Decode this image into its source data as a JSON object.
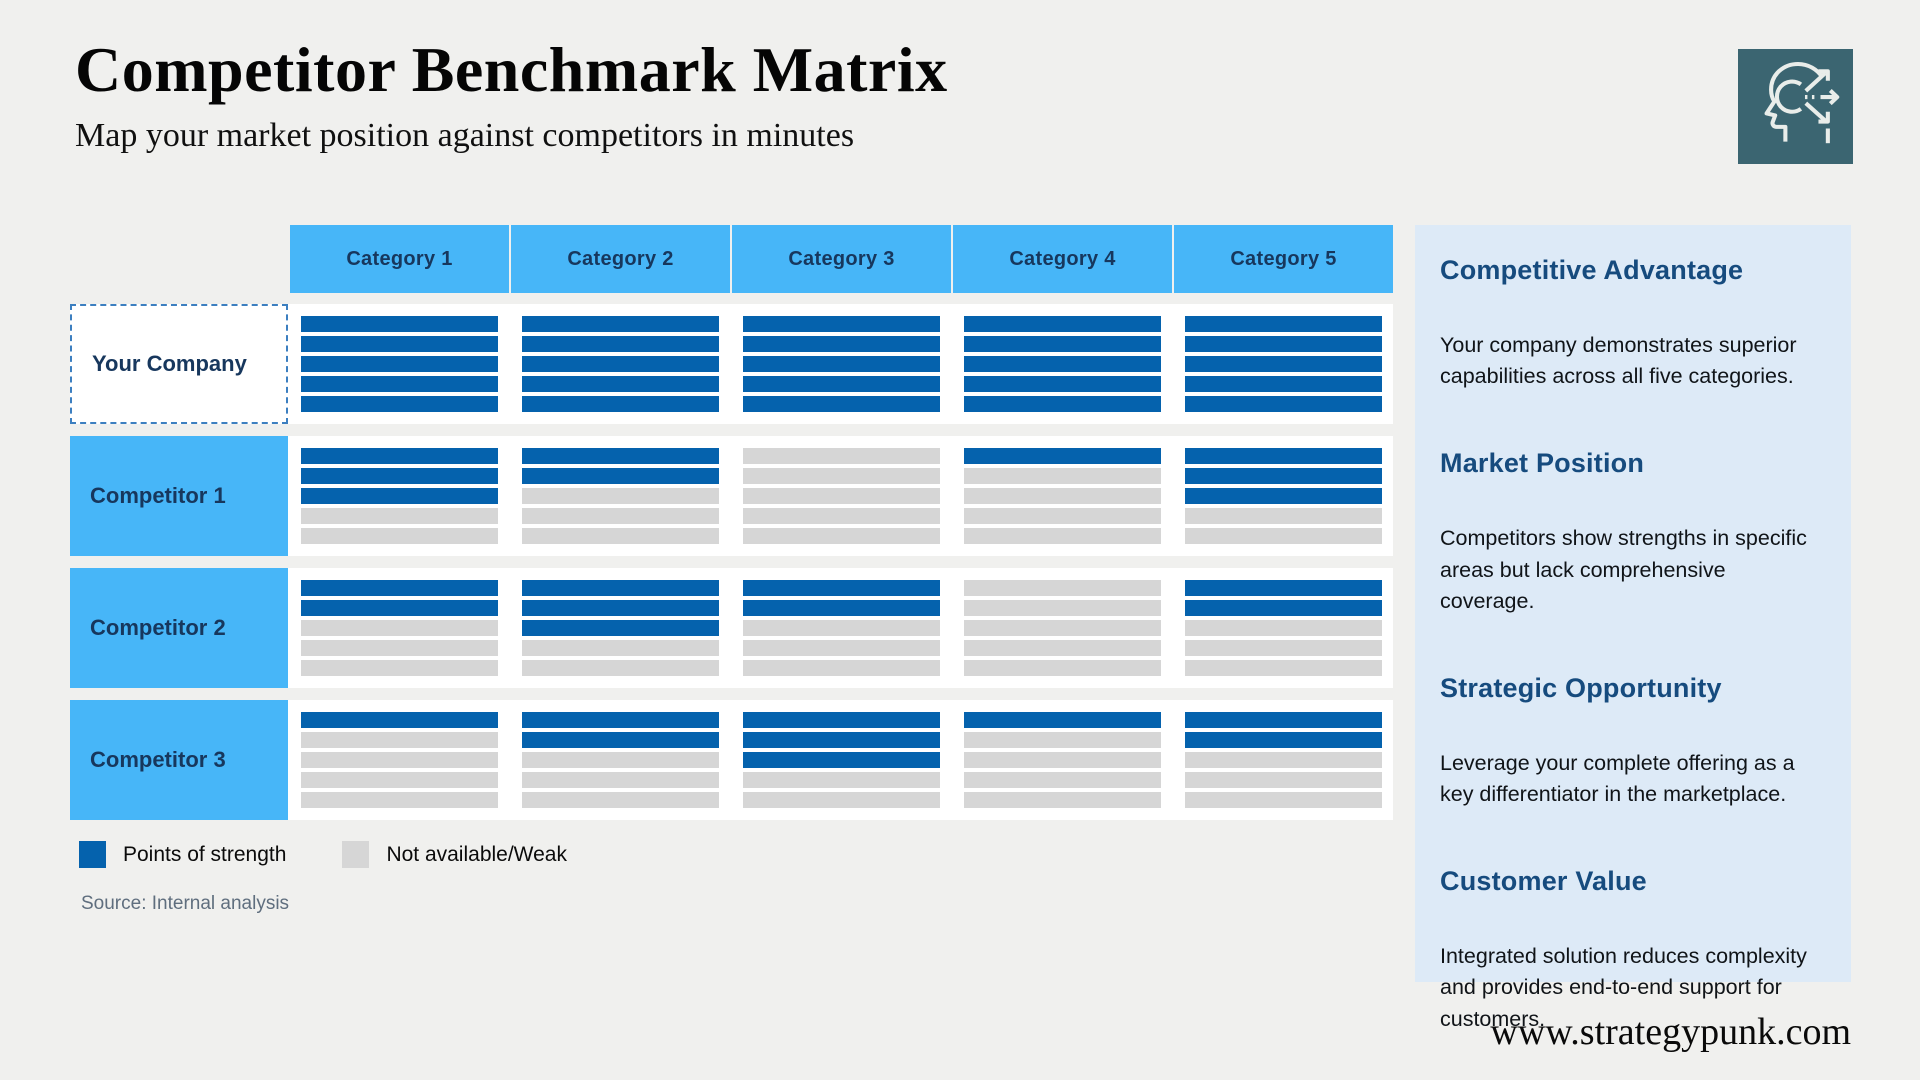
{
  "header": {
    "title": "Competitor Benchmark Matrix",
    "subtitle": "Map your market position against competitors in minutes"
  },
  "logo": {
    "icon": "strategy-head-arrows-icon"
  },
  "matrix": {
    "columns": [
      "Category 1",
      "Category 2",
      "Category 3",
      "Category 4",
      "Category 5"
    ],
    "bars_per_cell": 5,
    "rows": [
      {
        "label": "Your Company",
        "highlight": true,
        "strengths": [
          5,
          5,
          5,
          5,
          5
        ]
      },
      {
        "label": "Competitor 1",
        "highlight": false,
        "strengths": [
          3,
          2,
          0,
          1,
          3
        ]
      },
      {
        "label": "Competitor 2",
        "highlight": false,
        "strengths": [
          2,
          3,
          2,
          0,
          2
        ]
      },
      {
        "label": "Competitor 3",
        "highlight": false,
        "strengths": [
          1,
          2,
          3,
          1,
          2
        ]
      }
    ]
  },
  "legend": {
    "items": [
      {
        "label": "Points of strength",
        "color": "#0562ad"
      },
      {
        "label": "Not available/Weak",
        "color": "#d6d6d6"
      }
    ]
  },
  "source": "Source: Internal analysis",
  "insights": [
    {
      "heading": "Competitive Advantage",
      "body": "Your company demonstrates superior capabilities across all five categories."
    },
    {
      "heading": "Market Position",
      "body": "Competitors show strengths in specific areas but lack comprehensive coverage."
    },
    {
      "heading": "Strategic Opportunity",
      "body": "Leverage your complete offering as a key differentiator in the marketplace."
    },
    {
      "heading": "Customer Value",
      "body": "Integrated solution reduces complexity and provides end-to-end support for customers."
    }
  ],
  "footer": {
    "website": "www.strategypunk.com"
  },
  "colors": {
    "accent_blue": "#0562ad",
    "sky_blue": "#47b6f8",
    "weak_gray": "#d6d6d6",
    "navy_text": "#17375d",
    "heading_navy": "#164b7e",
    "sidebar_bg": "#ddeaf7",
    "icon_teal": "#3b6571",
    "page_bg": "#f0f0ee"
  }
}
